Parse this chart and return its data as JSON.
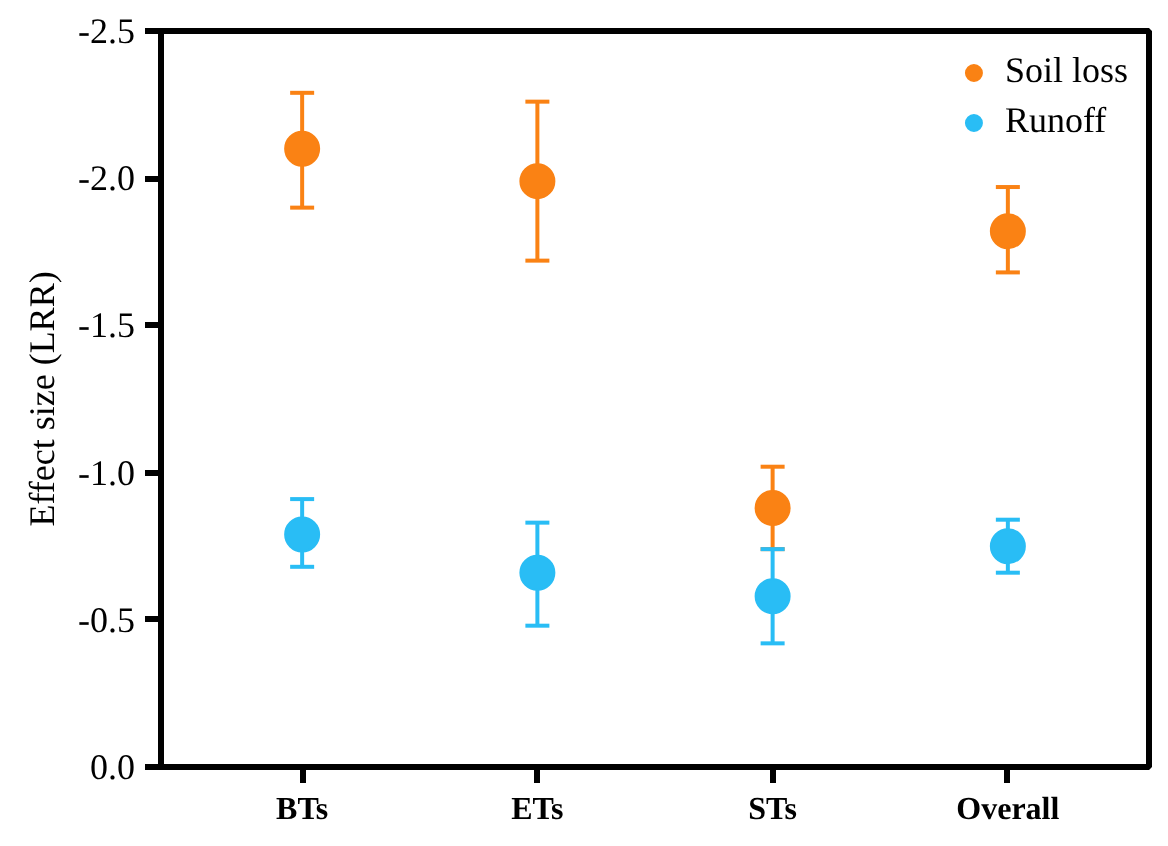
{
  "chart_data": {
    "type": "scatter",
    "ylabel": "Effect size (LRR)",
    "categories": [
      "BTs",
      "ETs",
      "STs",
      "Overall"
    ],
    "series": [
      {
        "name": "Soil loss",
        "color": "#fa8214",
        "values": [
          -2.1,
          -1.99,
          -0.88,
          -1.82
        ],
        "errors": [
          [
            -2.29,
            -1.9
          ],
          [
            -2.26,
            -1.72
          ],
          [
            -1.02,
            -0.74
          ],
          [
            -1.97,
            -1.68
          ]
        ]
      },
      {
        "name": "Runoff",
        "color": "#29bdf5",
        "values": [
          -0.79,
          -0.66,
          -0.58,
          -0.75
        ],
        "errors": [
          [
            -0.91,
            -0.68
          ],
          [
            -0.83,
            -0.48
          ],
          [
            -0.74,
            -0.42
          ],
          [
            -0.84,
            -0.66
          ]
        ]
      }
    ],
    "ylim": [
      0.0,
      -2.5
    ],
    "yticks": [
      {
        "value": 0,
        "label": "0.0"
      },
      -0.5,
      {
        "value": -1,
        "label": "-1.0"
      },
      -1.5,
      {
        "value": -2,
        "label": "-2.0"
      },
      -2.5
    ],
    "grid": false,
    "legend": "top right",
    "marker": "circle"
  }
}
